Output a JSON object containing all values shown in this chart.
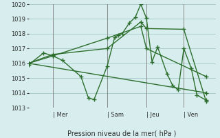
{
  "xlabel": "Pression niveau de la mer( hPa )",
  "ylim": [
    1013,
    1020
  ],
  "yticks": [
    1013,
    1014,
    1015,
    1016,
    1017,
    1018,
    1019,
    1020
  ],
  "bg_color": "#d8eeee",
  "line_color": "#2d6e2d",
  "grid_color": "#aacccc",
  "day_labels": [
    "| Mer",
    "| Sam",
    "| Jeu",
    "| Ven"
  ],
  "day_positions": [
    0.13,
    0.42,
    0.63,
    0.83
  ],
  "lines": [
    [
      0.0,
      1015.9,
      0.08,
      1016.7,
      0.13,
      1016.5,
      0.18,
      1016.2,
      0.28,
      1015.1,
      0.32,
      1013.65,
      0.35,
      1013.55,
      0.42,
      1015.8,
      0.46,
      1017.75,
      0.48,
      1017.9,
      0.5,
      1018.0,
      0.54,
      1018.75,
      0.57,
      1019.1,
      0.6,
      1020.0,
      0.63,
      1019.05,
      0.66,
      1016.1,
      0.69,
      1017.1,
      0.74,
      1015.3,
      0.77,
      1014.5,
      0.8,
      1014.2,
      0.83,
      1017.0,
      0.87,
      1015.65,
      0.9,
      1013.85,
      0.95,
      1013.5
    ],
    [
      0.0,
      1016.0,
      0.13,
      1016.6,
      0.42,
      1017.0,
      0.6,
      1018.8,
      0.63,
      1018.35,
      0.83,
      1018.3,
      0.95,
      1013.4
    ],
    [
      0.0,
      1016.0,
      0.13,
      1016.5,
      0.42,
      1017.7,
      0.6,
      1018.5,
      0.63,
      1017.0,
      0.95,
      1015.1
    ],
    [
      0.0,
      1016.0,
      0.95,
      1014.0
    ]
  ]
}
